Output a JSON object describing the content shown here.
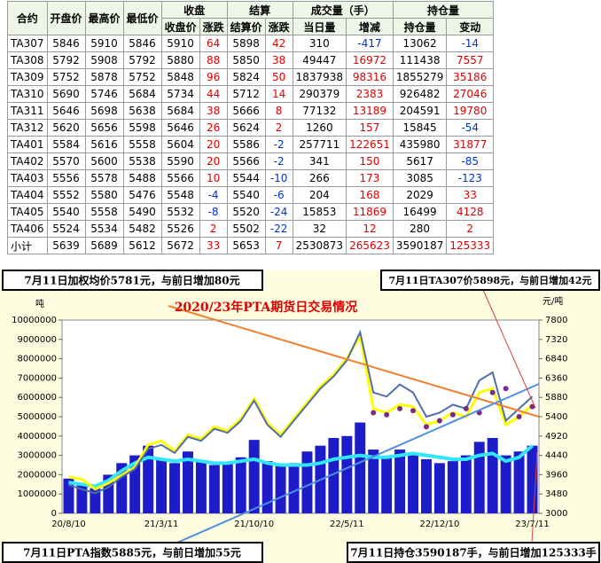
{
  "table": {
    "header_top": [
      "合约",
      "开盘价",
      "最高价",
      "最低价",
      "收盘",
      "结算",
      "成交量（手）",
      "持仓量"
    ],
    "header_sub": [
      "收盘价",
      "涨跌",
      "结算价",
      "涨跌",
      "当日量",
      "增减",
      "持仓量",
      "变动"
    ],
    "rows": [
      [
        "TA307",
        5846,
        5910,
        5846,
        5910,
        64,
        5898,
        42,
        310,
        -417,
        13062,
        -14
      ],
      [
        "TA308",
        5792,
        5908,
        5792,
        5880,
        88,
        5850,
        38,
        49447,
        16972,
        111438,
        7557
      ],
      [
        "TA309",
        5752,
        5878,
        5752,
        5848,
        96,
        5824,
        50,
        1837938,
        98316,
        1855279,
        35186
      ],
      [
        "TA310",
        5690,
        5746,
        5684,
        5734,
        44,
        5712,
        14,
        290379,
        2383,
        926482,
        27046
      ],
      [
        "TA311",
        5646,
        5698,
        5638,
        5684,
        38,
        5666,
        8,
        77132,
        13189,
        204591,
        19780
      ],
      [
        "TA312",
        5620,
        5656,
        5598,
        5646,
        26,
        5624,
        2,
        1260,
        157,
        15845,
        -54
      ],
      [
        "TA401",
        5584,
        5616,
        5558,
        5604,
        20,
        5586,
        -2,
        257711,
        122651,
        435980,
        31877
      ],
      [
        "TA402",
        5570,
        5600,
        5538,
        5590,
        20,
        5566,
        -2,
        341,
        150,
        5617,
        -85
      ],
      [
        "TA403",
        5556,
        5578,
        5488,
        5566,
        10,
        5544,
        -10,
        266,
        173,
        3085,
        -123
      ],
      [
        "TA404",
        5552,
        5580,
        5476,
        5548,
        -4,
        5540,
        -6,
        204,
        168,
        2029,
        33
      ],
      [
        "TA405",
        5540,
        5558,
        5490,
        5532,
        -8,
        5520,
        -24,
        15853,
        11869,
        16499,
        4128
      ],
      [
        "TA406",
        5524,
        5534,
        5482,
        5526,
        2,
        5502,
        -22,
        32,
        12,
        280,
        2
      ],
      [
        "小计",
        5639,
        5689,
        5612,
        5672,
        33,
        5653,
        7,
        2530873,
        265623,
        3590187,
        125333
      ]
    ]
  },
  "annotations": [
    "7月11日加权均价5781元，与前日增加80元",
    "7月11日TA307价5898元，与前日增加42元",
    "7月11日PTA指数5885元，与前日增加55元",
    "7月11日持仓3590187手，与前日增加125333手"
  ],
  "chart_data": {
    "type": "combo",
    "title": "2020/23年PTA期货日交易情况",
    "ylabel": "吨",
    "y2label": "元/吨",
    "categories": [
      "20/8/10",
      null,
      null,
      null,
      null,
      null,
      null,
      "21/3/11",
      null,
      null,
      null,
      null,
      null,
      null,
      "21/10/10",
      null,
      null,
      null,
      null,
      null,
      null,
      "22/5/11",
      null,
      null,
      null,
      null,
      null,
      null,
      "22/12/10",
      null,
      null,
      null,
      null,
      null,
      null,
      "23/7/11"
    ],
    "ylim": [
      0,
      10000000
    ],
    "yticks": [
      0,
      1000000,
      2000000,
      3000000,
      4000000,
      5000000,
      6000000,
      7000000,
      8000000,
      9000000,
      10000000
    ],
    "y2lim": [
      3000,
      7800
    ],
    "y2ticks": [
      3000,
      3480,
      3960,
      4440,
      4920,
      5400,
      5880,
      6360,
      6840,
      7320,
      7800
    ],
    "series": [
      {
        "type": "bar",
        "color": "#1c1cc8",
        "values": [
          1800000,
          1500000,
          1300000,
          2000000,
          2600000,
          3000000,
          3500000,
          2800000,
          2600000,
          3200000,
          2700000,
          2500000,
          2600000,
          2900000,
          3800000,
          2700000,
          2500000,
          2600000,
          3200000,
          3500000,
          3900000,
          4000000,
          4700000,
          3300000,
          2900000,
          3300000,
          3000000,
          2800000,
          2600000,
          2700000,
          3000000,
          3700000,
          3900000,
          3000000,
          3200000,
          3500000
        ]
      },
      {
        "type": "line",
        "color": "#33e6ff",
        "width": 4,
        "values": [
          1600000,
          1500000,
          1400000,
          1700000,
          2200000,
          2600000,
          2900000,
          2800000,
          2700000,
          2800000,
          2700000,
          2600000,
          2600000,
          2700000,
          2800000,
          2600000,
          2500000,
          2500000,
          2500000,
          2600000,
          2800000,
          2900000,
          3000000,
          2900000,
          2900000,
          3000000,
          3100000,
          3000000,
          2900000,
          2800000,
          2800000,
          3000000,
          3100000,
          2700000,
          2900000,
          3500000
        ]
      },
      {
        "type": "line",
        "axis": "y2",
        "color": "#ffff00",
        "width": 3,
        "values": [
          3900,
          3850,
          3600,
          3750,
          3950,
          4150,
          4700,
          4800,
          4550,
          4950,
          4850,
          5150,
          5050,
          5350,
          5850,
          5250,
          4950,
          5350,
          5750,
          6150,
          6450,
          6850,
          7400,
          5600,
          5500,
          5700,
          5650,
          5200,
          5300,
          5500,
          5400,
          6000,
          6100,
          5200,
          5400,
          5700
        ]
      },
      {
        "type": "line",
        "axis": "y2",
        "color": "#4f6fa8",
        "width": 2,
        "values": [
          3700,
          3600,
          3500,
          3650,
          3900,
          4100,
          4600,
          4700,
          4500,
          4900,
          4800,
          5100,
          5000,
          5300,
          5800,
          5200,
          4900,
          5300,
          5700,
          6100,
          6400,
          6800,
          7500,
          6000,
          5900,
          6200,
          6000,
          5400,
          5500,
          5700,
          5600,
          6300,
          6500,
          5300,
          5600,
          5900
        ]
      },
      {
        "type": "scatter",
        "axis": "y2",
        "color": "#7a2a8a",
        "values": [
          null,
          null,
          null,
          null,
          null,
          null,
          null,
          null,
          null,
          null,
          null,
          null,
          null,
          null,
          null,
          null,
          null,
          null,
          null,
          null,
          null,
          null,
          null,
          5500,
          5450,
          5600,
          5550,
          5150,
          5300,
          5450,
          5600,
          5500,
          6000,
          6100,
          5400,
          5650
        ]
      }
    ]
  }
}
